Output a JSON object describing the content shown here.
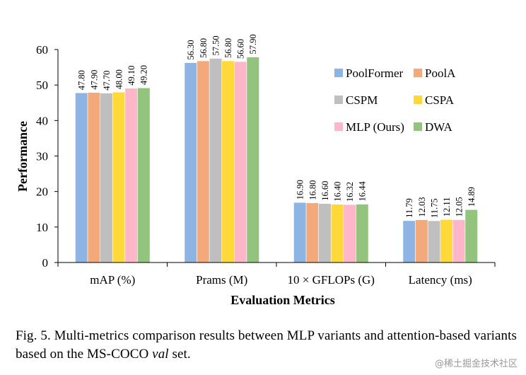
{
  "chart_data": {
    "type": "bar",
    "title": "",
    "xlabel": "Evaluation Metrics",
    "ylabel": "Performance",
    "ylim": [
      0,
      60
    ],
    "yticks": [
      "0",
      "10",
      "20",
      "30",
      "40",
      "50",
      "60"
    ],
    "grid": false,
    "legend_position": "top-right",
    "categories": [
      "mAP (%)",
      "Prams (M)",
      "10 × GFLOPs (G)",
      "Latency (ms)"
    ],
    "series": [
      {
        "name": "PoolFormer",
        "color": "#8EB4E3",
        "values": [
          47.8,
          56.3,
          16.9,
          11.79
        ],
        "labels": [
          "47.80",
          "56.30",
          "16.90",
          "11.79"
        ]
      },
      {
        "name": "PoolA",
        "color": "#F4A97A",
        "values": [
          47.9,
          56.8,
          16.8,
          12.03
        ],
        "labels": [
          "47.90",
          "56.80",
          "16.80",
          "12.03"
        ]
      },
      {
        "name": "CSPM",
        "color": "#BFBFBF",
        "values": [
          47.7,
          57.5,
          16.6,
          11.75
        ],
        "labels": [
          "47.70",
          "57.50",
          "16.60",
          "11.75"
        ]
      },
      {
        "name": "CSPA",
        "color": "#FFD83A",
        "values": [
          48.0,
          56.8,
          16.4,
          12.11
        ],
        "labels": [
          "48.00",
          "56.80",
          "16.40",
          "12.11"
        ]
      },
      {
        "name": "MLP (Ours)",
        "color": "#FFB6C8",
        "values": [
          49.1,
          56.6,
          16.32,
          12.05
        ],
        "labels": [
          "49.10",
          "56.60",
          "16.32",
          "12.05"
        ]
      },
      {
        "name": "DWA",
        "color": "#92C47D",
        "values": [
          49.2,
          57.9,
          16.44,
          14.89
        ],
        "labels": [
          "49.20",
          "57.90",
          "16.44",
          "14.89"
        ]
      }
    ]
  },
  "caption": {
    "prefix": "Fig. 5.  Multi-metrics comparison results between MLP variants and attention-based variants based on the MS-COCO ",
    "italic": "val",
    "suffix": " set."
  },
  "watermark": "@稀土掘金技术社区"
}
